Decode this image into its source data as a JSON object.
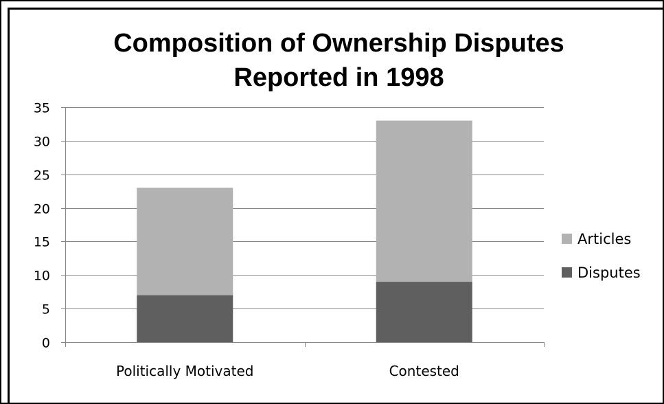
{
  "chart_data": {
    "type": "bar",
    "stacked": true,
    "title": "Composition of Ownership Disputes Reported in 1998",
    "title_lines": [
      "Composition of Ownership Disputes",
      "Reported in 1998"
    ],
    "categories": [
      "Politically Motivated",
      "Contested"
    ],
    "series": [
      {
        "name": "Disputes",
        "values": [
          7,
          9
        ],
        "color": "#5f5f5f"
      },
      {
        "name": "Articles",
        "values": [
          16,
          24
        ],
        "color": "#b2b2b2"
      }
    ],
    "ylim": [
      0,
      35
    ],
    "yticks": [
      0,
      5,
      10,
      15,
      20,
      25,
      30,
      35
    ],
    "grid": true,
    "legend_position": "right",
    "xlabel": "",
    "ylabel": ""
  }
}
